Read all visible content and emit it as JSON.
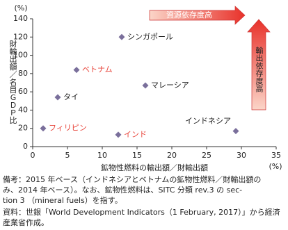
{
  "chart_data": {
    "type": "scatter",
    "y_label": "財輸出額／名目ＧＤＰ比",
    "y_unit": "(%)",
    "x_label": "鉱物性燃料の輸出額／財輸出額",
    "x_unit": "(%)",
    "x": [
      12.8,
      6.3,
      3.6,
      16.2,
      29.2,
      1.5,
      12.3
    ],
    "values": [
      120,
      84,
      54,
      67,
      17,
      20,
      13
    ],
    "point_labels": [
      "シンガポール",
      "ベトナム",
      "タイ",
      "マレーシア",
      "インドネシア",
      "フィリピン",
      "インド"
    ],
    "label_colors": [
      "#222222",
      "#e8463c",
      "#222222",
      "#222222",
      "#222222",
      "#e8463c",
      "#e8463c"
    ],
    "color": "#7a6f9b",
    "xlim": [
      0,
      35
    ],
    "xticks": [
      0,
      5,
      10,
      15,
      20,
      25,
      30,
      35
    ],
    "ylim": [
      0,
      140
    ],
    "yticks": [
      0,
      20,
      40,
      60,
      80,
      100,
      120,
      140
    ],
    "grid": false,
    "annotations": [
      "資源依存度高",
      "輸出依存度高"
    ]
  },
  "notes": [
    "備考：2015 年ベース（インドネシアとベトナムの鉱物性燃料／財輸出額の",
    "み、2014 年ベース）。なお、鉱物性燃料は、SITC 分類 rev.3 の sec-",
    "tion 3 （mineral fuels）を指す。",
    "資料：世銀「World Development Indicators（1 February, 2017）」から経済",
    "産業省作成。"
  ]
}
